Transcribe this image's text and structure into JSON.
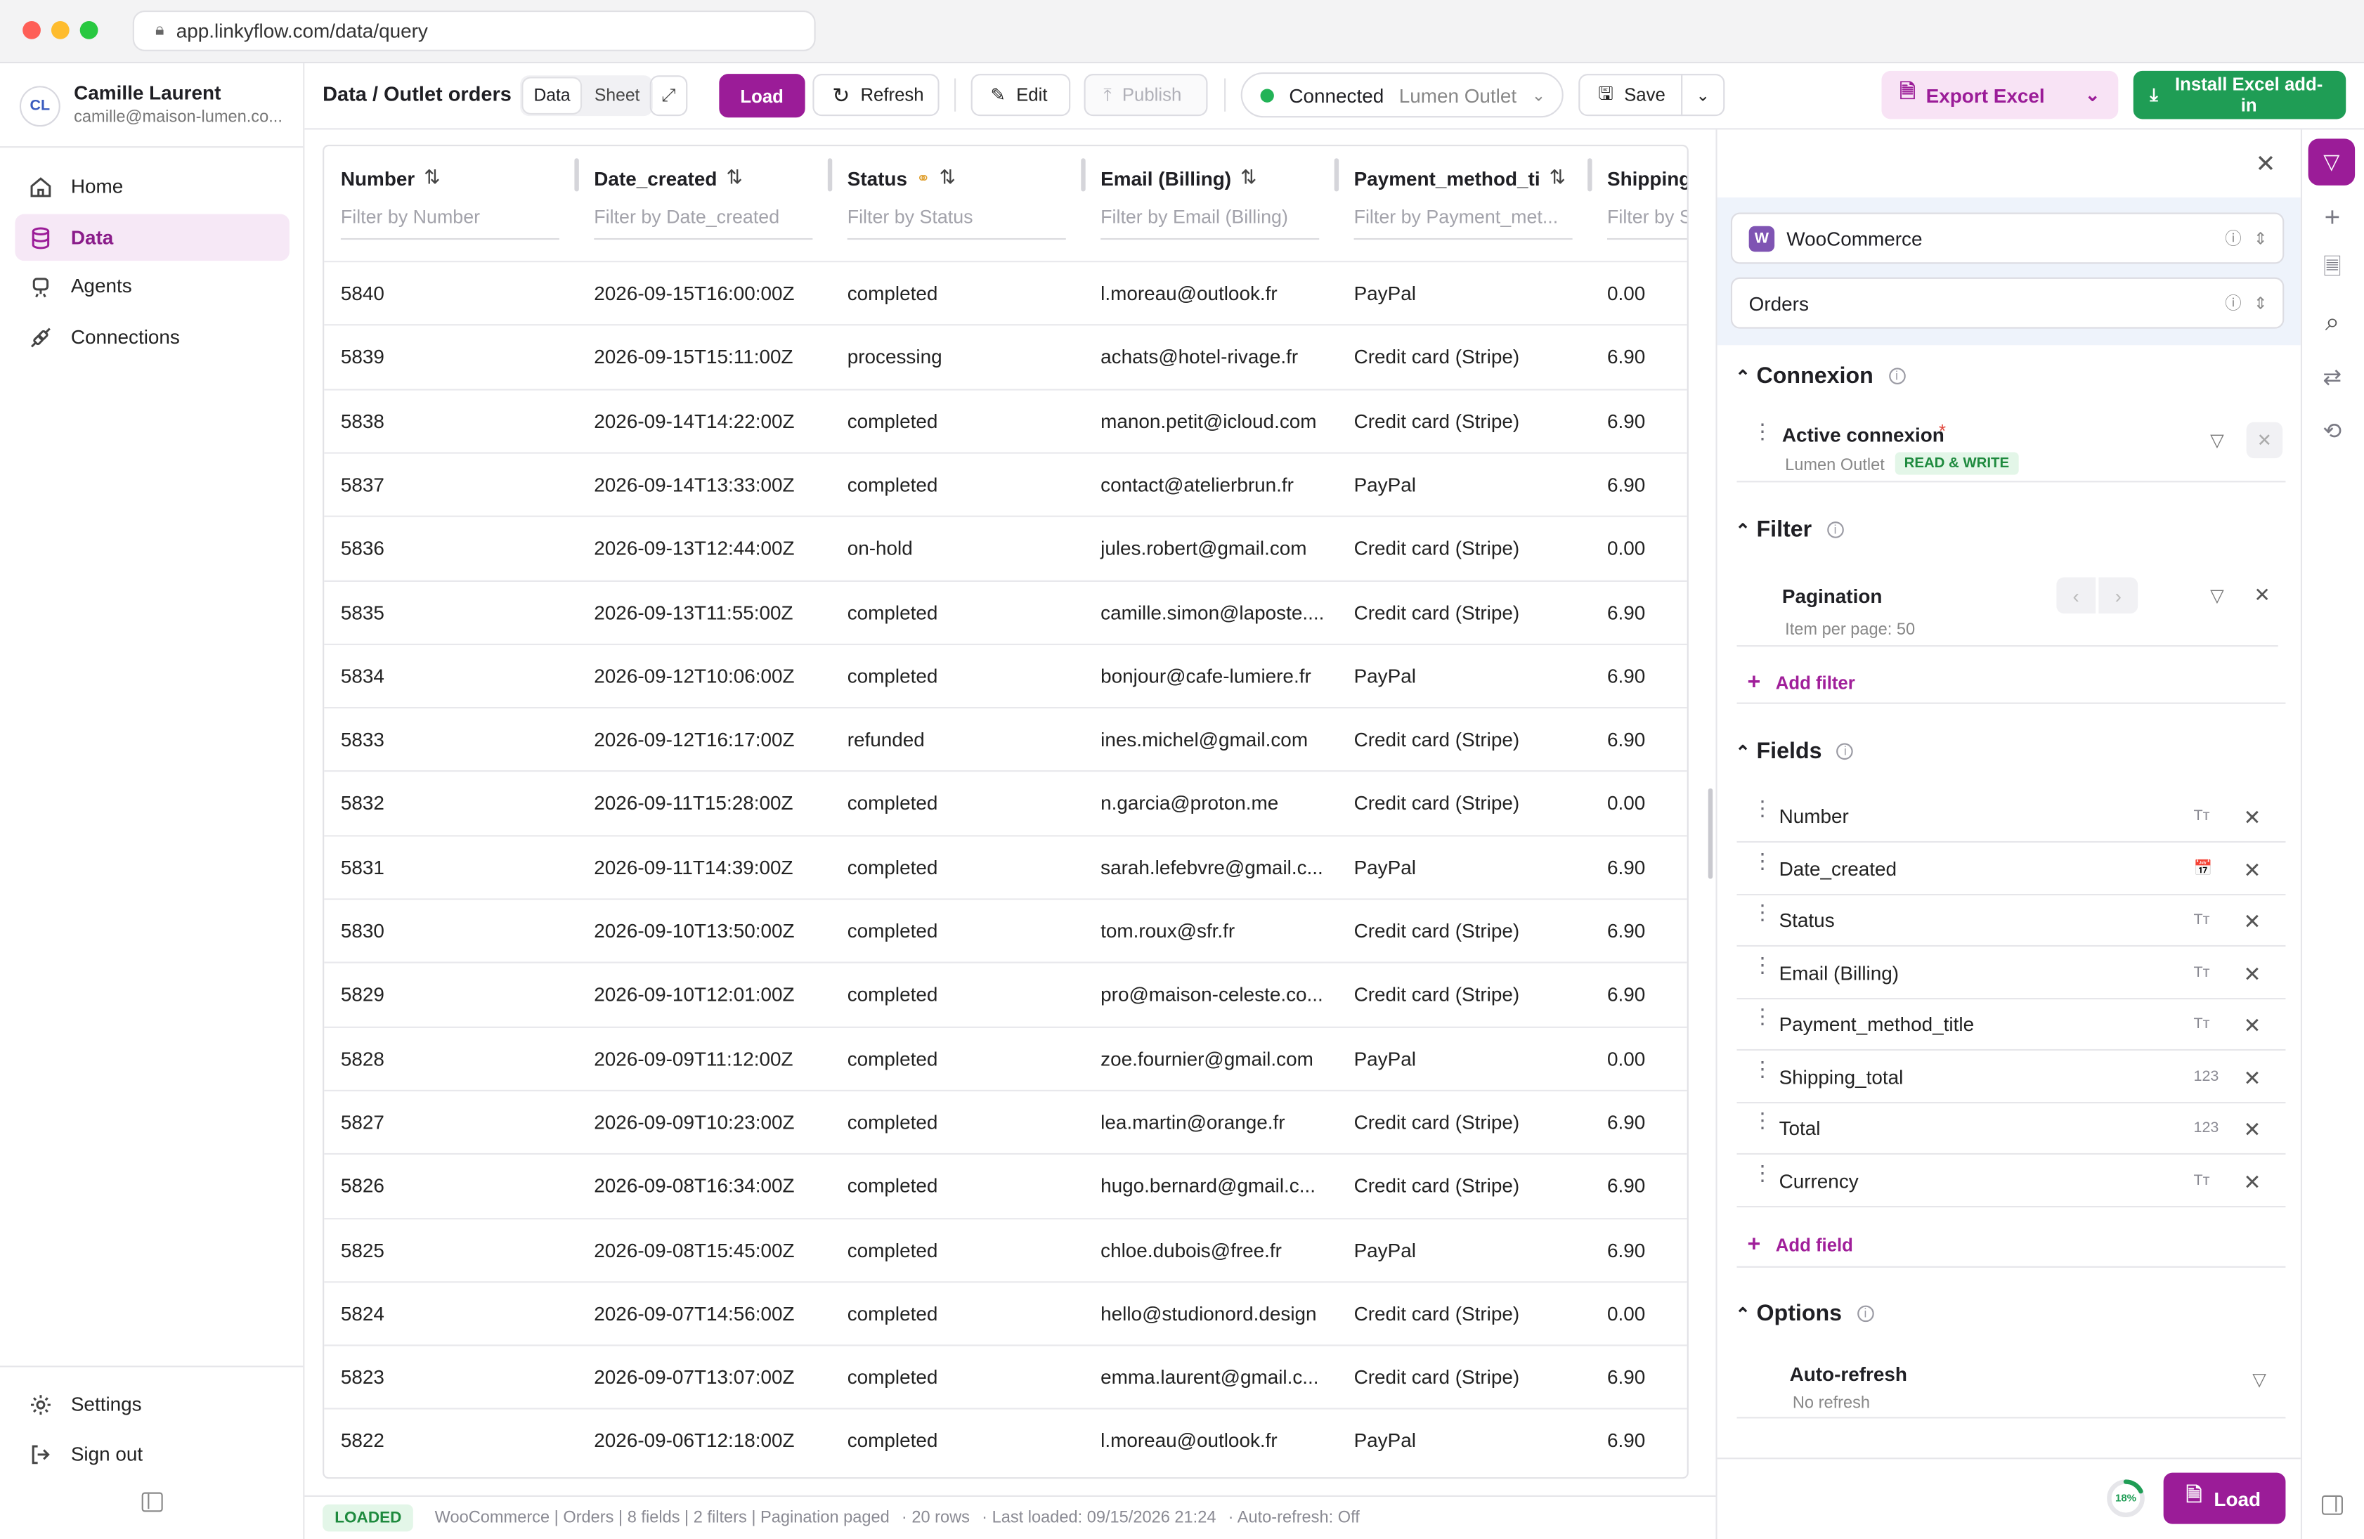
{
  "browser": {
    "url": "app.linkyflow.com/data/query"
  },
  "user": {
    "initials": "CL",
    "name": "Camille Laurent",
    "email": "camille@maison-lumen.co..."
  },
  "nav": {
    "items": [
      {
        "label": "Home",
        "icon": "home-icon"
      },
      {
        "label": "Data",
        "icon": "database-icon",
        "active": true
      },
      {
        "label": "Agents",
        "icon": "agents-icon"
      },
      {
        "label": "Connections",
        "icon": "connections-icon"
      }
    ],
    "settings": "Settings",
    "signout": "Sign out"
  },
  "topbar": {
    "breadcrumb": "Data / Outlet orders",
    "view_data": "Data",
    "view_sheet": "Sheet",
    "load": "Load",
    "refresh": "Refresh",
    "edit": "Edit",
    "publish": "Publish",
    "connected": "Connected",
    "connection_name": "Lumen Outlet",
    "save": "Save",
    "export": "Export Excel",
    "install": "Install Excel add-in"
  },
  "table": {
    "columns": [
      {
        "name": "Number",
        "filter": "Filter by Number"
      },
      {
        "name": "Date_created",
        "filter": "Filter by Date_created"
      },
      {
        "name": "Status",
        "filter": "Filter by Status"
      },
      {
        "name": "Email (Billing)",
        "filter": "Filter by Email (Billing)"
      },
      {
        "name": "Payment_method_ti",
        "filter": "Filter by Payment_met..."
      },
      {
        "name": "Shipping",
        "filter": "Filter by S"
      }
    ],
    "rows": [
      [
        "5840",
        "2026-09-15T16:00:00Z",
        "completed",
        "l.moreau@outlook.fr",
        "PayPal",
        "0.00"
      ],
      [
        "5839",
        "2026-09-15T15:11:00Z",
        "processing",
        "achats@hotel-rivage.fr",
        "Credit card (Stripe)",
        "6.90"
      ],
      [
        "5838",
        "2026-09-14T14:22:00Z",
        "completed",
        "manon.petit@icloud.com",
        "Credit card (Stripe)",
        "6.90"
      ],
      [
        "5837",
        "2026-09-14T13:33:00Z",
        "completed",
        "contact@atelierbrun.fr",
        "PayPal",
        "6.90"
      ],
      [
        "5836",
        "2026-09-13T12:44:00Z",
        "on-hold",
        "jules.robert@gmail.com",
        "Credit card (Stripe)",
        "0.00"
      ],
      [
        "5835",
        "2026-09-13T11:55:00Z",
        "completed",
        "camille.simon@laposte....",
        "Credit card (Stripe)",
        "6.90"
      ],
      [
        "5834",
        "2026-09-12T10:06:00Z",
        "completed",
        "bonjour@cafe-lumiere.fr",
        "PayPal",
        "6.90"
      ],
      [
        "5833",
        "2026-09-12T16:17:00Z",
        "refunded",
        "ines.michel@gmail.com",
        "Credit card (Stripe)",
        "6.90"
      ],
      [
        "5832",
        "2026-09-11T15:28:00Z",
        "completed",
        "n.garcia@proton.me",
        "Credit card (Stripe)",
        "0.00"
      ],
      [
        "5831",
        "2026-09-11T14:39:00Z",
        "completed",
        "sarah.lefebvre@gmail.c...",
        "PayPal",
        "6.90"
      ],
      [
        "5830",
        "2026-09-10T13:50:00Z",
        "completed",
        "tom.roux@sfr.fr",
        "Credit card (Stripe)",
        "6.90"
      ],
      [
        "5829",
        "2026-09-10T12:01:00Z",
        "completed",
        "pro@maison-celeste.co...",
        "Credit card (Stripe)",
        "6.90"
      ],
      [
        "5828",
        "2026-09-09T11:12:00Z",
        "completed",
        "zoe.fournier@gmail.com",
        "PayPal",
        "0.00"
      ],
      [
        "5827",
        "2026-09-09T10:23:00Z",
        "completed",
        "lea.martin@orange.fr",
        "Credit card (Stripe)",
        "6.90"
      ],
      [
        "5826",
        "2026-09-08T16:34:00Z",
        "completed",
        "hugo.bernard@gmail.c...",
        "Credit card (Stripe)",
        "6.90"
      ],
      [
        "5825",
        "2026-09-08T15:45:00Z",
        "completed",
        "chloe.dubois@free.fr",
        "PayPal",
        "6.90"
      ],
      [
        "5824",
        "2026-09-07T14:56:00Z",
        "completed",
        "hello@studionord.design",
        "Credit card (Stripe)",
        "0.00"
      ],
      [
        "5823",
        "2026-09-07T13:07:00Z",
        "completed",
        "emma.laurent@gmail.c...",
        "Credit card (Stripe)",
        "6.90"
      ],
      [
        "5822",
        "2026-09-06T12:18:00Z",
        "completed",
        "l.moreau@outlook.fr",
        "PayPal",
        "6.90"
      ]
    ]
  },
  "statusbar": {
    "badge": "LOADED",
    "summary": "WooCommerce | Orders | 8 fields | 2 filters | Pagination paged",
    "rows": "· 20 rows",
    "last_loaded": "· Last loaded: 09/15/2026 21:24",
    "auto_refresh": "· Auto-refresh: Off"
  },
  "panel": {
    "source": "WooCommerce",
    "source_badge": "W",
    "entity": "Orders",
    "connexion": {
      "title": "Connexion",
      "label": "Active connexion",
      "required": "*",
      "value": "Lumen Outlet",
      "badge": "READ & WRITE"
    },
    "filter": {
      "title": "Filter",
      "label": "Pagination",
      "sub": "Item per page: 50",
      "add": "Add filter"
    },
    "fields": {
      "title": "Fields",
      "items": [
        {
          "name": "Number",
          "type": "Tт"
        },
        {
          "name": "Date_created",
          "type": "📅"
        },
        {
          "name": "Status",
          "type": "Tт"
        },
        {
          "name": "Email (Billing)",
          "type": "Tт"
        },
        {
          "name": "Payment_method_title",
          "type": "Tт"
        },
        {
          "name": "Shipping_total",
          "type": "123"
        },
        {
          "name": "Total",
          "type": "123"
        },
        {
          "name": "Currency",
          "type": "Tт"
        }
      ],
      "add": "Add field"
    },
    "options": {
      "title": "Options",
      "label": "Auto-refresh",
      "sub": "No refresh"
    },
    "progress": "18%",
    "progress_value": 0.18,
    "load": "Load"
  },
  "colors": {
    "accent": "#9b1c98",
    "green": "#1f9d55"
  }
}
